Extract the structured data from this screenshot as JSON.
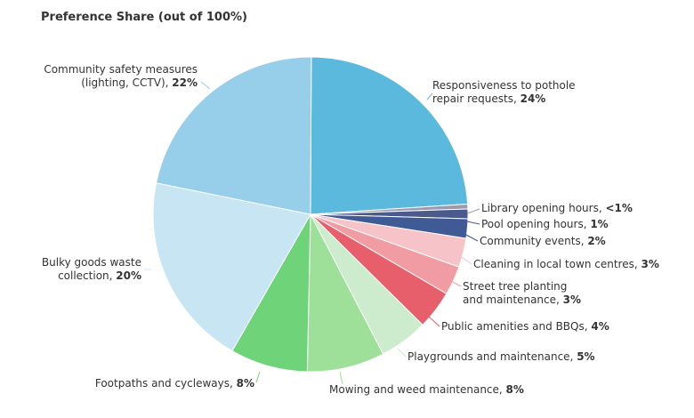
{
  "chart_data": {
    "type": "pie",
    "title": "Preference Share (out of 100%)",
    "slices": [
      {
        "label": "Responsiveness to pothole repair requests",
        "label_lines": [
          "Responsiveness to pothole",
          "repair requests,"
        ],
        "pct_text": "24%",
        "value": 24,
        "color": "#5bb9dd"
      },
      {
        "label": "Library opening hours",
        "label_lines": [
          "Library opening hours,"
        ],
        "pct_text": "<1%",
        "value": 0.5,
        "color": "#9a9bb0"
      },
      {
        "label": "Pool opening hours",
        "label_lines": [
          "Pool opening hours,"
        ],
        "pct_text": "1%",
        "value": 1,
        "color": "#4a5a8c"
      },
      {
        "label": "Community events",
        "label_lines": [
          "Community events,"
        ],
        "pct_text": "2%",
        "value": 2,
        "color": "#3f5a94"
      },
      {
        "label": "Cleaning in local town centres",
        "label_lines": [
          "Cleaning in local town centres,"
        ],
        "pct_text": "3%",
        "value": 3,
        "color": "#f6c3c8"
      },
      {
        "label": "Street tree planting and maintenance",
        "label_lines": [
          "Street tree planting",
          "and maintenance,"
        ],
        "pct_text": "3%",
        "value": 3,
        "color": "#f19ca3"
      },
      {
        "label": "Public amenities and BBQs",
        "label_lines": [
          "Public amenities and BBQs,"
        ],
        "pct_text": "4%",
        "value": 4,
        "color": "#e85f6c"
      },
      {
        "label": "Playgrounds and maintenance",
        "label_lines": [
          "Playgrounds and maintenance,"
        ],
        "pct_text": "5%",
        "value": 5,
        "color": "#cdeccd"
      },
      {
        "label": "Mowing and weed maintenance",
        "label_lines": [
          "Mowing and weed maintenance,"
        ],
        "pct_text": "8%",
        "value": 8,
        "color": "#9ee09a"
      },
      {
        "label": "Footpaths and cycleways",
        "label_lines": [
          "Footpaths and cycleways,"
        ],
        "pct_text": "8%",
        "value": 8,
        "color": "#6fd37a"
      },
      {
        "label": "Bulky goods waste collection",
        "label_lines": [
          "Bulky goods waste",
          "collection,"
        ],
        "pct_text": "20%",
        "value": 20,
        "color": "#c8e5f4"
      },
      {
        "label": "Community safety measures (lighting, CCTV)",
        "label_lines": [
          "Community safety measures",
          "(lighting, CCTV),"
        ],
        "pct_text": "22%",
        "value": 22,
        "color": "#97cfea"
      }
    ]
  }
}
